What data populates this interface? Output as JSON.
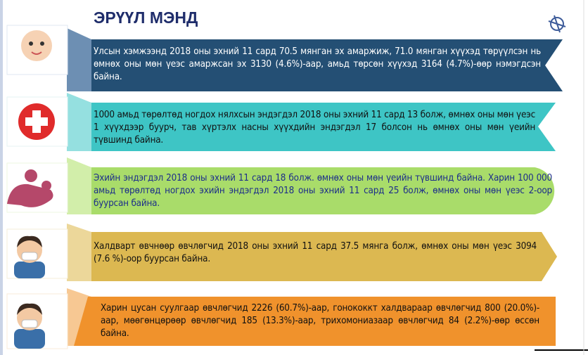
{
  "title": "ЭРҮҮЛ МЭНД",
  "items": [
    {
      "text": "Улсын хэмжээнд 2018 оны эхний 11 сард 70.5 мянган эх амаржиж, 71.0 мянган хүүхэд төрүүлсэн нь өмнөх оны мөн үеэс амаржсан эх 3130 (4.6%)-аар, амьд төрсөн хүүхэд 3164 (4.7%)-өөр нэмэгдсэн байна."
    },
    {
      "text": "1000 амьд төрөлтөд ногдох нялхсын эндэгдэл 2018 оны эхний 11 сард 13 болж, өмнөх оны мөн үеэс 1 хүүхдээр буурч, тав хүртэлх насны хүүхдийн эндэгдэл 17 болсон нь өмнөх оны мөн үеийн түвшинд байна."
    },
    {
      "text": "Эхийн эндэгдэл 2018 оны эхний 11 сард 18 болж. өмнөх оны мөн үеийн түвшинд байна. Харин 100 000 амьд төрөлтөд ногдох эхийн эндэгдэл 2018 оны эхний 11 сард 25 болж, өмнөх оны мөн үеэс 2-оор буурсан байна."
    },
    {
      "text": "Халдварт өвчнөөр өвчлөгчид 2018 оны эхний 11 сард 37.5 мянга болж, өмнөх оны мөн үеэс 3094 (7.6 %)-оор буурсан байна."
    },
    {
      "text": "Харин цусан суулгаар өвчлөгчид 2226 (60.7%)-аар, гонококкт халдвараар өвчлөгчид 800 (20.0%)-аар, мөөгөнцөрөөр өвчлөгчид 185 (13.3%)-аар, трихомониазаар өвчлөгчид 84 (2.2%)-өөр өссөн байна."
    }
  ]
}
